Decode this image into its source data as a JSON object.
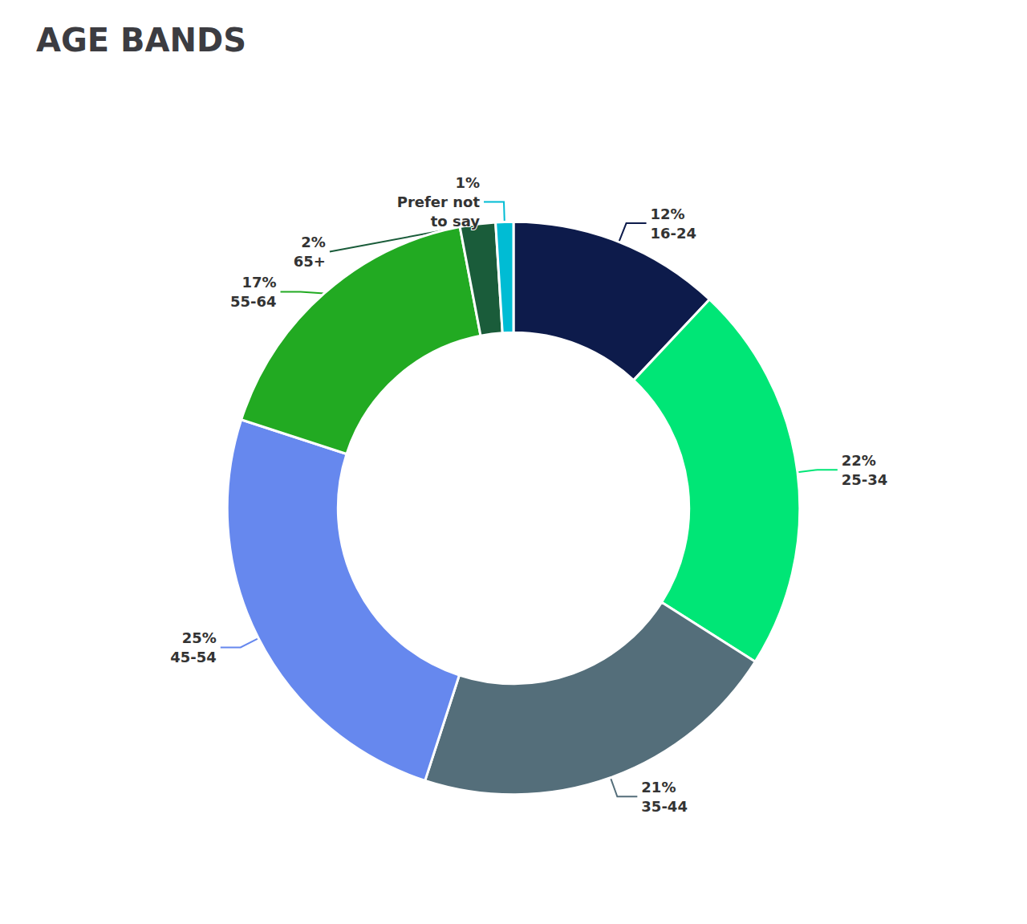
{
  "chart_data": {
    "type": "pie",
    "title": "AGE BANDS",
    "categories": [
      "16-24",
      "25-34",
      "35-44",
      "45-54",
      "55-64",
      "65+",
      "Prefer not\nto say"
    ],
    "values": [
      12,
      22,
      21,
      25,
      17,
      2,
      1
    ],
    "value_labels": [
      "12%",
      "22%",
      "21%",
      "25%",
      "17%",
      "2%",
      "1%"
    ],
    "colors": [
      "#0d1b4b",
      "#00e676",
      "#546e7a",
      "#6688ee",
      "#22aa22",
      "#1a5c3a",
      "#00bcd4"
    ],
    "data_labels": true
  }
}
